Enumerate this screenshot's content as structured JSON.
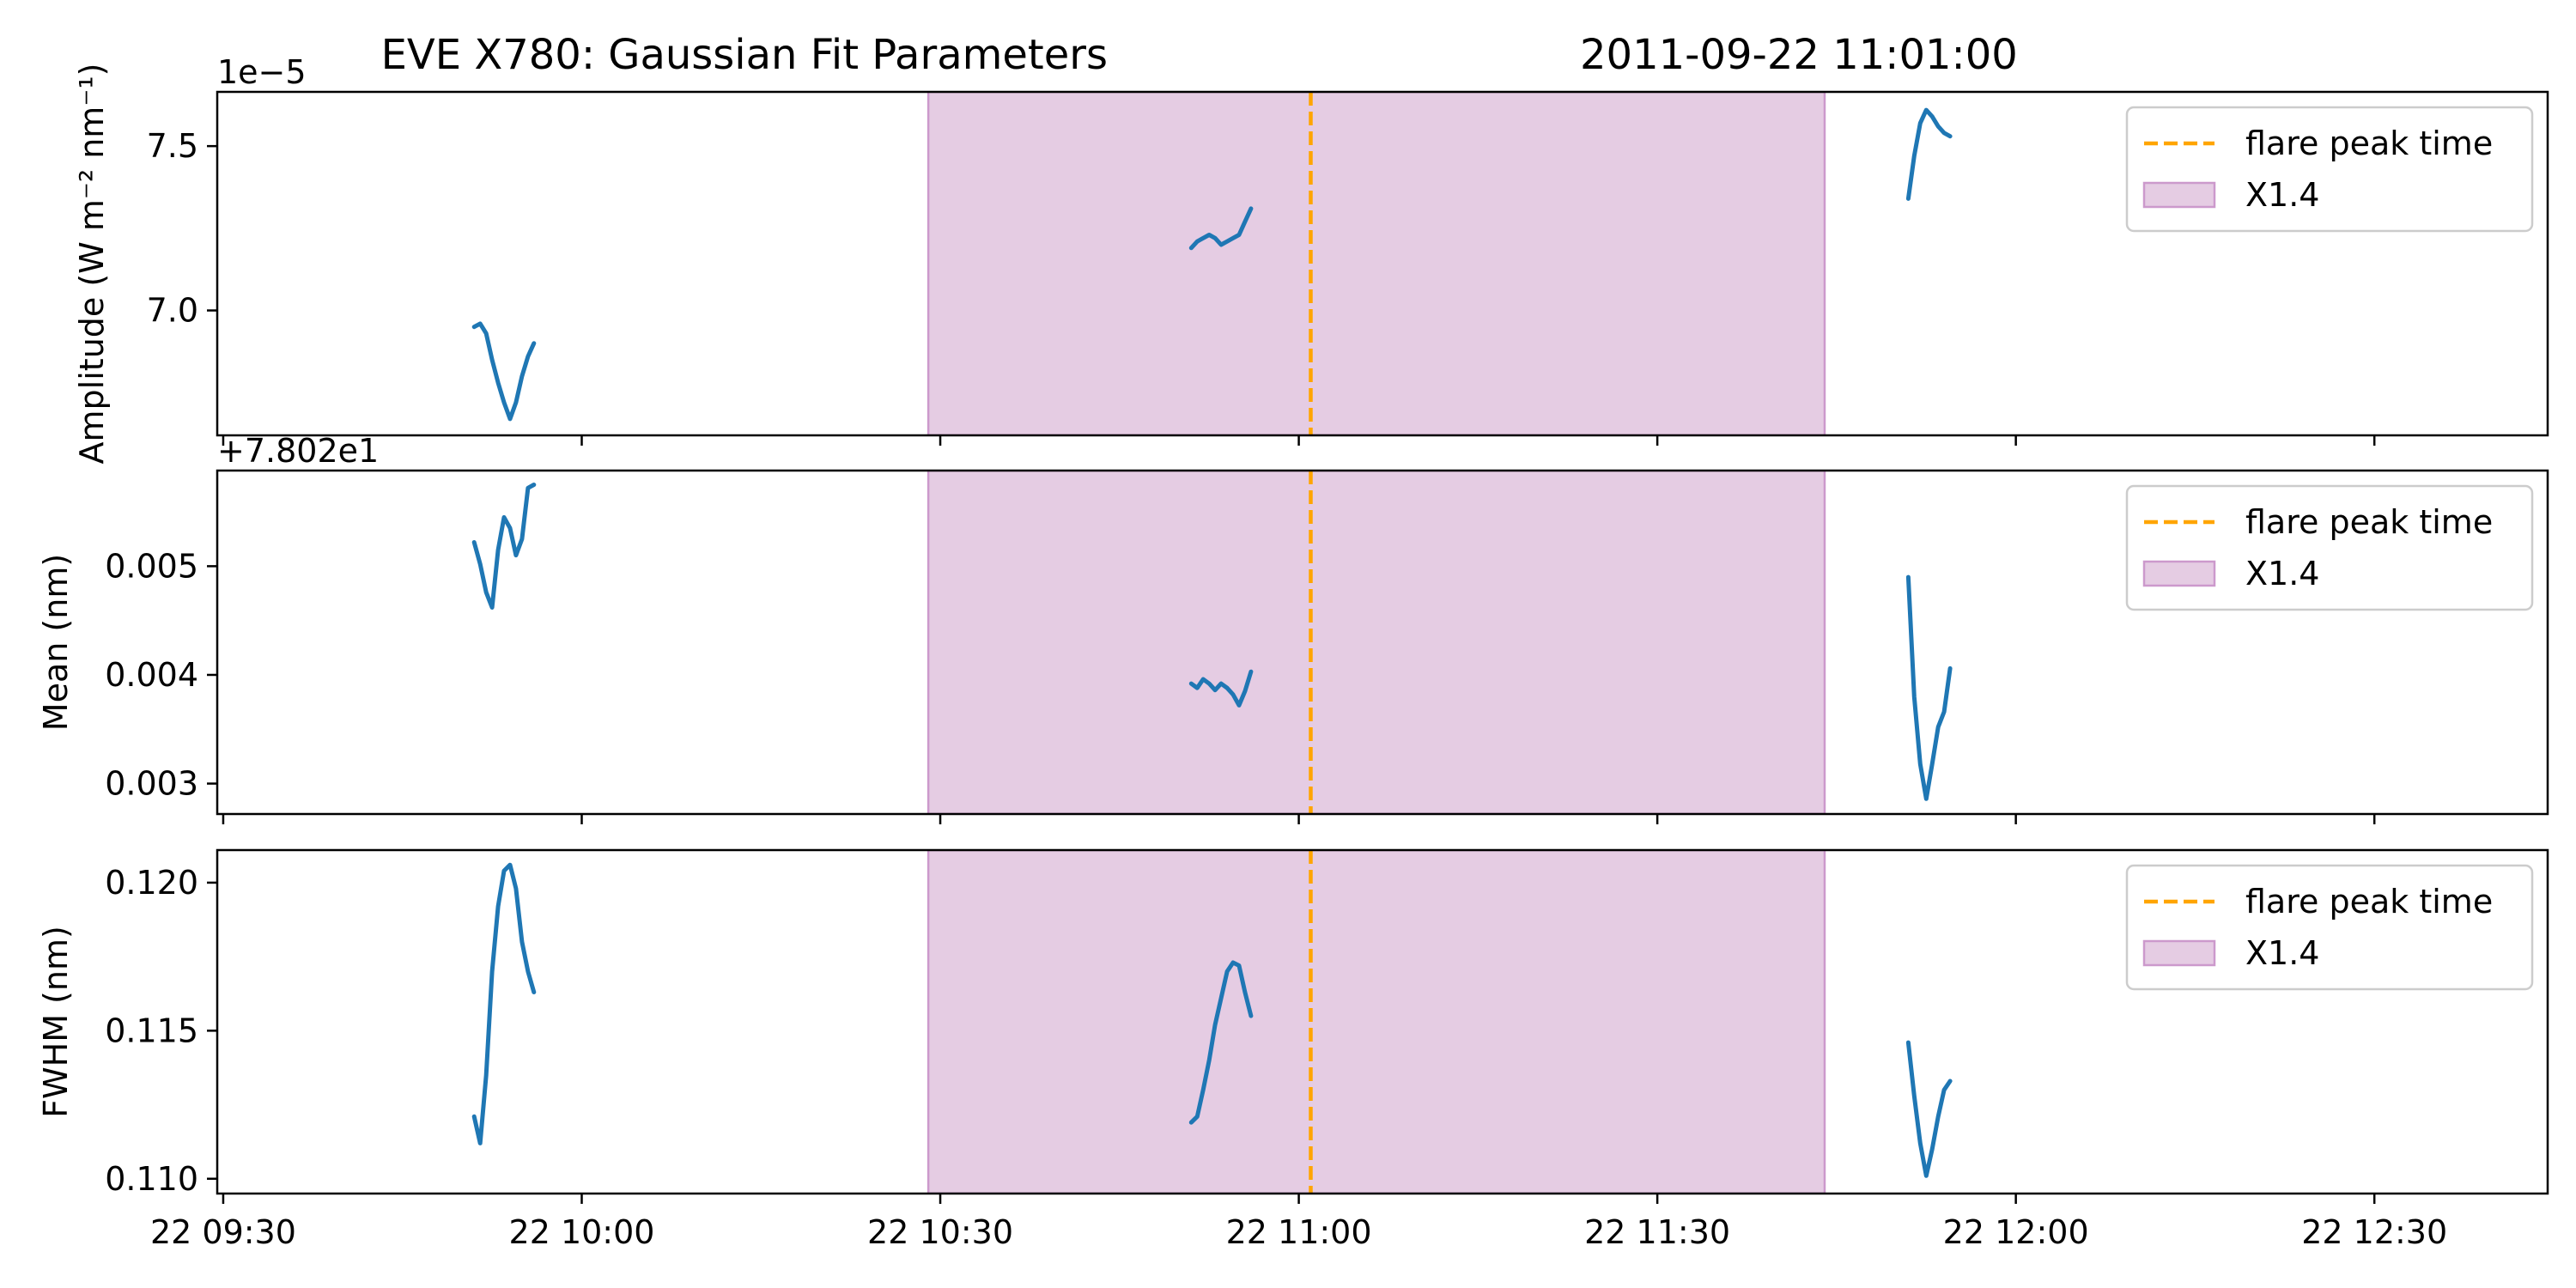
{
  "chart_data": {
    "type": "line",
    "title": "EVE X780: Gaussian Fit Parameters",
    "timestamp": "2011-09-22 11:01:00",
    "x_tick_labels": [
      "22 09:30",
      "22 10:00",
      "22 10:30",
      "22 11:00",
      "22 11:30",
      "22 12:00",
      "22 12:30"
    ],
    "x_tick_minutes": [
      570,
      600,
      630,
      660,
      690,
      720,
      750
    ],
    "xlim": [
      569.5,
      764.5
    ],
    "flare_peak_minute": 661,
    "flare_span": [
      629,
      704
    ],
    "legend": {
      "position": "upper right",
      "peak_label": "flare peak time",
      "span_label": "X1.4"
    },
    "colors": {
      "line": "#1f77b4",
      "peak": "#ffa500",
      "span_fill": "#e5cce3",
      "span_edge": "#cc99cc"
    },
    "panels": [
      {
        "ylabel": "Amplitude (W m⁻² nm⁻¹)",
        "offset_text": "1e−5",
        "ylim": [
          6.62,
          7.665
        ],
        "yticks": [
          7.0,
          7.5
        ],
        "ytick_labels": [
          "7.0",
          "7.5"
        ],
        "unit_scale": "1e-5",
        "segments": [
          {
            "x": [
              591.0,
              591.5,
              592.0,
              592.5,
              593.0,
              593.5,
              594.0,
              594.5,
              595.0,
              595.5,
              596.0
            ],
            "y": [
              6.95,
              6.96,
              6.93,
              6.85,
              6.78,
              6.72,
              6.67,
              6.72,
              6.8,
              6.86,
              6.9
            ]
          },
          {
            "x": [
              651.0,
              651.5,
              652.0,
              652.5,
              653.0,
              653.5,
              654.0,
              654.5,
              655.0,
              655.5,
              656.0
            ],
            "y": [
              7.19,
              7.21,
              7.22,
              7.23,
              7.22,
              7.2,
              7.21,
              7.22,
              7.23,
              7.27,
              7.31
            ]
          },
          {
            "x": [
              711.0,
              711.5,
              712.0,
              712.5,
              713.0,
              713.5,
              714.0,
              714.5
            ],
            "y": [
              7.34,
              7.47,
              7.57,
              7.61,
              7.59,
              7.56,
              7.54,
              7.53
            ]
          }
        ]
      },
      {
        "ylabel": "Mean (nm)",
        "offset_text": "+7.802e1",
        "ylim": [
          0.00272,
          0.00588
        ],
        "yticks": [
          0.003,
          0.004,
          0.005
        ],
        "ytick_labels": [
          "0.003",
          "0.004",
          "0.005"
        ],
        "unit_offset": "78.02",
        "segments": [
          {
            "x": [
              591.0,
              591.5,
              592.0,
              592.5,
              593.0,
              593.5,
              594.0,
              594.5,
              595.0,
              595.5,
              596.0
            ],
            "y": [
              0.00522,
              0.00502,
              0.00476,
              0.00462,
              0.00515,
              0.00545,
              0.00535,
              0.0051,
              0.00525,
              0.00572,
              0.00575
            ]
          },
          {
            "x": [
              651.0,
              651.5,
              652.0,
              652.5,
              653.0,
              653.5,
              654.0,
              654.5,
              655.0,
              655.5,
              656.0
            ],
            "y": [
              0.00392,
              0.00388,
              0.00396,
              0.00392,
              0.00386,
              0.00392,
              0.00388,
              0.00382,
              0.00372,
              0.00385,
              0.00403
            ]
          },
          {
            "x": [
              711.0,
              711.5,
              712.0,
              712.5,
              713.0,
              713.5,
              714.0,
              714.5
            ],
            "y": [
              0.0049,
              0.0038,
              0.00318,
              0.00286,
              0.00318,
              0.00352,
              0.00366,
              0.00406
            ]
          }
        ]
      },
      {
        "ylabel": "FWHM (nm)",
        "offset_text": "",
        "ylim": [
          0.1095,
          0.1211
        ],
        "yticks": [
          0.11,
          0.115,
          0.12
        ],
        "ytick_labels": [
          "0.110",
          "0.115",
          "0.120"
        ],
        "segments": [
          {
            "x": [
              591.0,
              591.5,
              592.0,
              592.5,
              593.0,
              593.5,
              594.0,
              594.5,
              595.0,
              595.5,
              596.0
            ],
            "y": [
              0.1121,
              0.1112,
              0.1135,
              0.117,
              0.1192,
              0.1204,
              0.1206,
              0.1198,
              0.118,
              0.117,
              0.1163
            ]
          },
          {
            "x": [
              651.0,
              651.5,
              652.0,
              652.5,
              653.0,
              653.5,
              654.0,
              654.5,
              655.0,
              655.5,
              656.0
            ],
            "y": [
              0.1119,
              0.1121,
              0.113,
              0.114,
              0.1152,
              0.1161,
              0.117,
              0.1173,
              0.1172,
              0.1163,
              0.1155
            ]
          },
          {
            "x": [
              711.0,
              711.5,
              712.0,
              712.5,
              713.0,
              713.5,
              714.0,
              714.5
            ],
            "y": [
              0.1146,
              0.1128,
              0.1112,
              0.1101,
              0.111,
              0.1121,
              0.113,
              0.1133
            ]
          }
        ]
      }
    ]
  }
}
